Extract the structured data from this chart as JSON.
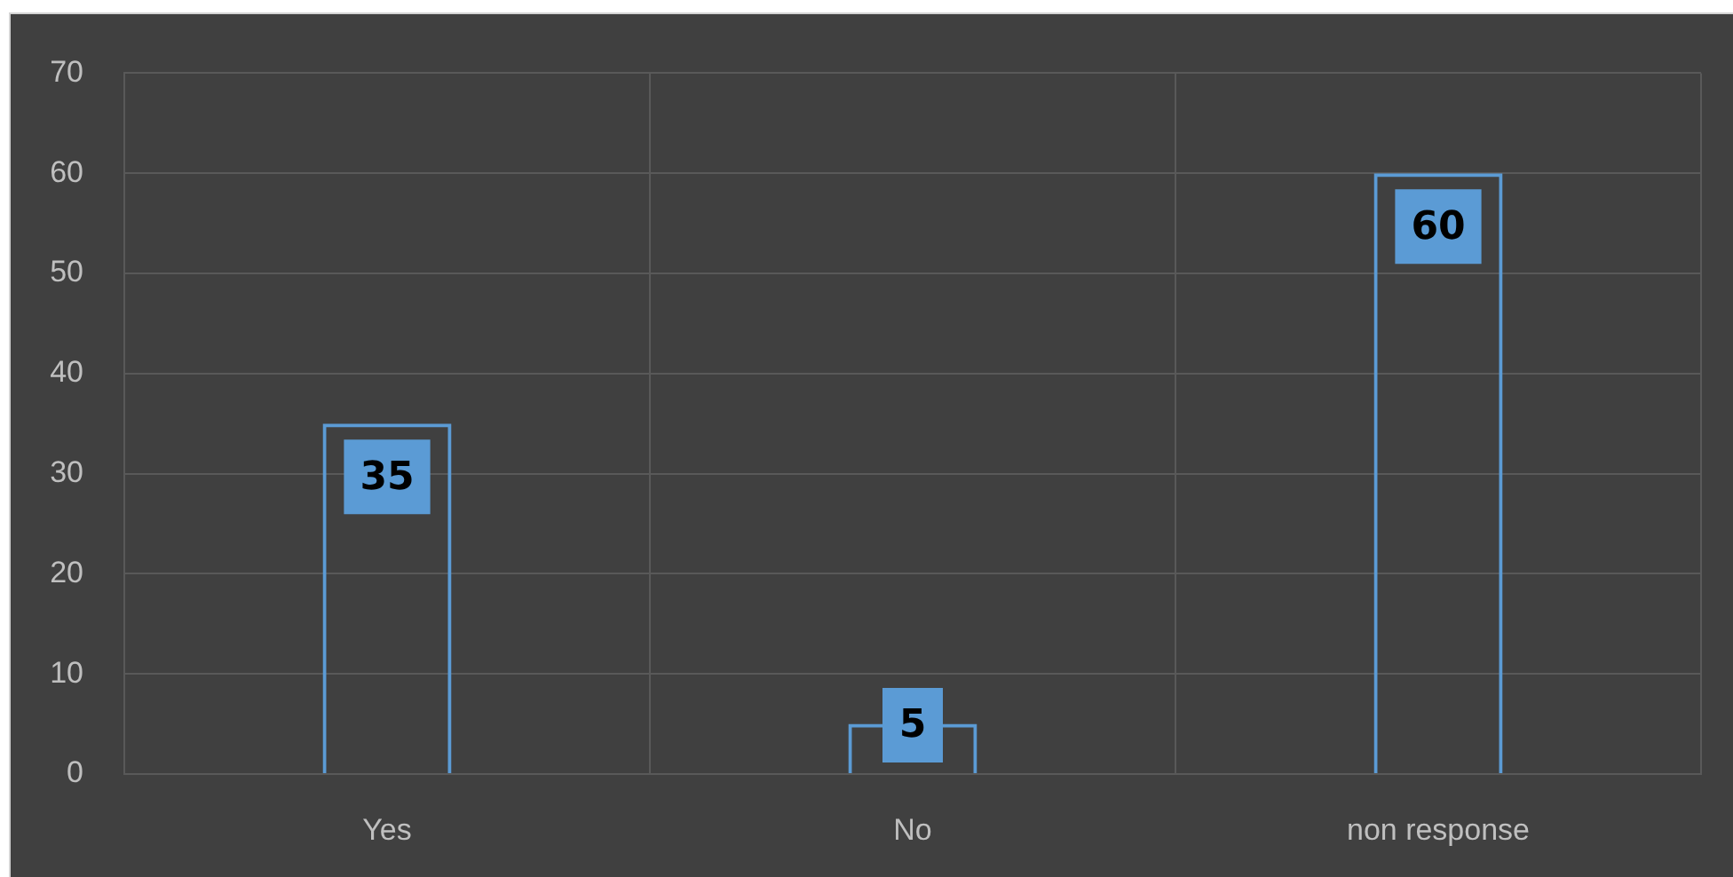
{
  "chart_data": {
    "type": "bar",
    "categories": [
      "Yes",
      "No",
      "non response"
    ],
    "values": [
      35,
      5,
      60
    ],
    "color": "#5b9bd5",
    "ylim": [
      0,
      70
    ],
    "yticks": [
      0,
      10,
      20,
      30,
      40,
      50,
      60,
      70
    ],
    "grid": true,
    "data_labels": true
  }
}
